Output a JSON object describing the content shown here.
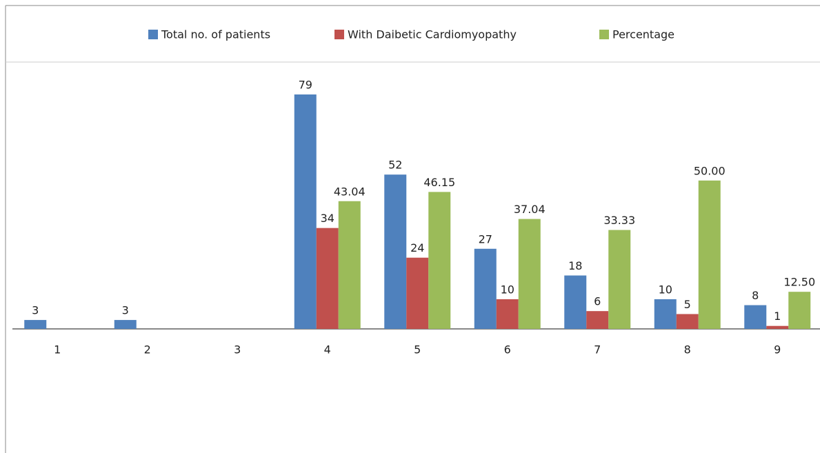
{
  "chart_data": {
    "type": "bar",
    "categories": [
      "1",
      "2",
      "3",
      "4",
      "5",
      "6",
      "7",
      "8",
      "9"
    ],
    "series": [
      {
        "name": "Total no. of patients",
        "color": "#4f81bd",
        "values": [
          3,
          3,
          null,
          79,
          52,
          27,
          18,
          10,
          8
        ]
      },
      {
        "name": "With Daibetic Cardiomyopathy",
        "color": "#c0504d",
        "values": [
          null,
          null,
          null,
          34,
          24,
          10,
          6,
          5,
          1
        ]
      },
      {
        "name": "Percentage",
        "color": "#9bbb59",
        "values": [
          null,
          null,
          null,
          43.04,
          46.15,
          37.04,
          33.33,
          50,
          12.5
        ],
        "value_labels": [
          null,
          null,
          null,
          "43.04",
          "46.15",
          "37.04",
          "33.33",
          "50.00",
          "12.50"
        ]
      }
    ],
    "legend": "top"
  }
}
